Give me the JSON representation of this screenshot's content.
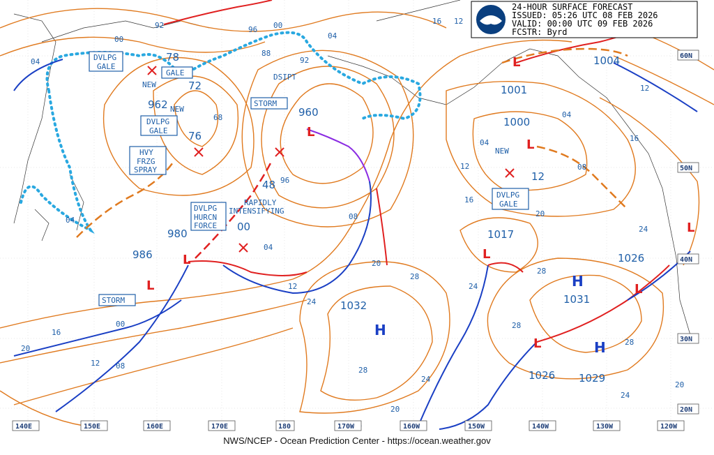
{
  "header": {
    "line1": "24-HOUR SURFACE FORECAST",
    "line2": "ISSUED: 05:26 UTC 08 FEB 2026",
    "line3": "VALID:  00:00 UTC 09 FEB 2026",
    "line4": "FCSTR:  Byrd",
    "logo_text": "NOAA"
  },
  "footer": "NWS/NCEP - Ocean Prediction Center - https://ocean.weather.gov",
  "lon_labels": [
    "140E",
    "150E",
    "160E",
    "170E",
    "180",
    "170W",
    "160W",
    "150W",
    "140W",
    "130W",
    "120W"
  ],
  "lat_labels": [
    "60N",
    "50N",
    "40N",
    "30N",
    "20N"
  ],
  "highs": [
    {
      "label": "H",
      "value": "1032"
    },
    {
      "label": "H",
      "value": "1031"
    },
    {
      "label": "H",
      "value": "1029"
    }
  ],
  "lows": [
    {
      "label": "L",
      "value": "960"
    },
    {
      "label": "L",
      "value": "962"
    },
    {
      "label": "L",
      "value": "980"
    },
    {
      "label": "L",
      "value": "986"
    },
    {
      "label": "L",
      "value": "1004"
    },
    {
      "label": "L",
      "value": "1000"
    },
    {
      "label": "L",
      "value": "1017"
    },
    {
      "label": "L",
      "value": "1026"
    }
  ],
  "pressure_values": [
    "78",
    "72",
    "76",
    "68",
    "48",
    "96",
    "88",
    "92",
    "00",
    "04",
    "12",
    "16",
    "20",
    "24",
    "28",
    "08",
    "1001",
    "1026",
    "1026",
    "1004"
  ],
  "warnings": [
    {
      "lines": [
        "DVLPG",
        "GALE"
      ]
    },
    {
      "lines": [
        "GALE"
      ]
    },
    {
      "lines": [
        "DVLPG",
        "GALE"
      ]
    },
    {
      "lines": [
        "HVY",
        "FRZG",
        "SPRAY"
      ]
    },
    {
      "lines": [
        "STORM"
      ]
    },
    {
      "lines": [
        "DSIPT"
      ]
    },
    {
      "lines": [
        "DVLPG",
        "HURCN",
        "FORCE"
      ]
    },
    {
      "lines": [
        "STORM"
      ]
    },
    {
      "lines": [
        "DVLPG",
        "GALE"
      ]
    }
  ],
  "annotations": {
    "new1": "NEW",
    "new2": "NEW",
    "new3": "NEW",
    "rapid1": "RAPIDLY",
    "rapid2": "INTENSIFYING"
  },
  "colors": {
    "isobar": "#e07a1f",
    "warm_front": "#e02020",
    "cold_front": "#1a3fc4",
    "occluded_front": "#8a2be2",
    "ice_edge": "#29a8e0",
    "label_blue": "#1f5fa8"
  }
}
